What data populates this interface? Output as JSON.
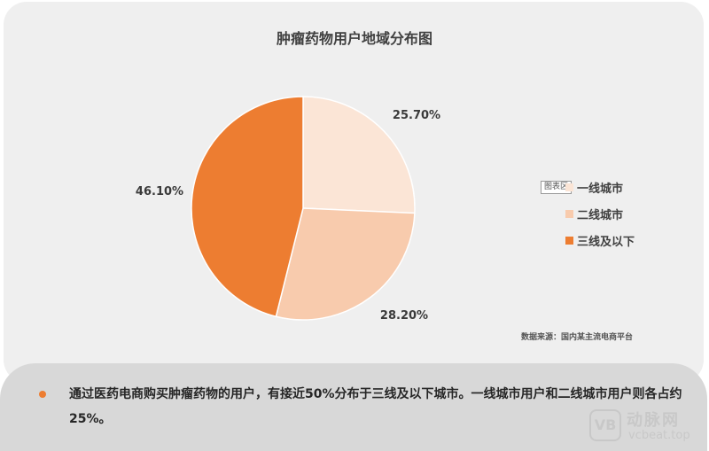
{
  "chart_data": {
    "type": "pie",
    "title": "肿瘤药物用户地域分布图",
    "categories": [
      "一线城市",
      "二线城市",
      "三线及以下"
    ],
    "values": [
      25.7,
      28.2,
      46.1
    ],
    "value_labels": [
      "25.70%",
      "28.20%",
      "46.10%"
    ],
    "colors": [
      "#fbe5d6",
      "#f8cbad",
      "#ed7d31"
    ],
    "legend_position": "right"
  },
  "legend_tag": "图表区",
  "source": "数据来源：国内某主流电商平台",
  "summary": "通过医药电商购买肿瘤药物的用户，有接近50%分布于三线及以下城市。一线城市用户和二线城市用户则各占约25%。",
  "watermark": {
    "logo": "VB",
    "name": "动脉网",
    "url": "vcbeat.top"
  }
}
